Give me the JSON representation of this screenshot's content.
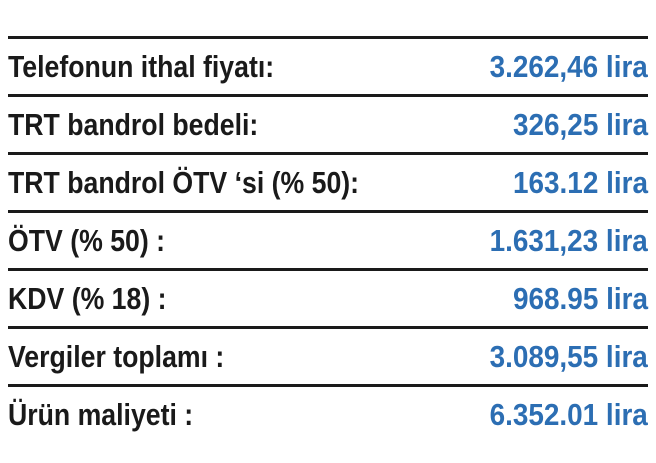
{
  "table": {
    "rows": [
      [
        "Telefonun ithal fiyatı:",
        "3.262,46 lira"
      ],
      [
        "TRT bandrol bedeli:",
        "326,25 lira"
      ],
      [
        "TRT bandrol ÖTV ‘si (% 50):",
        "163.12 lira"
      ],
      [
        "ÖTV (% 50) :",
        "1.631,23 lira"
      ],
      [
        "KDV (% 18) :",
        "968.95 lira"
      ],
      [
        "Vergiler toplamı :",
        "3.089,55 lira"
      ],
      [
        "Ürün maliyeti :",
        "6.352.01 lira"
      ]
    ]
  }
}
